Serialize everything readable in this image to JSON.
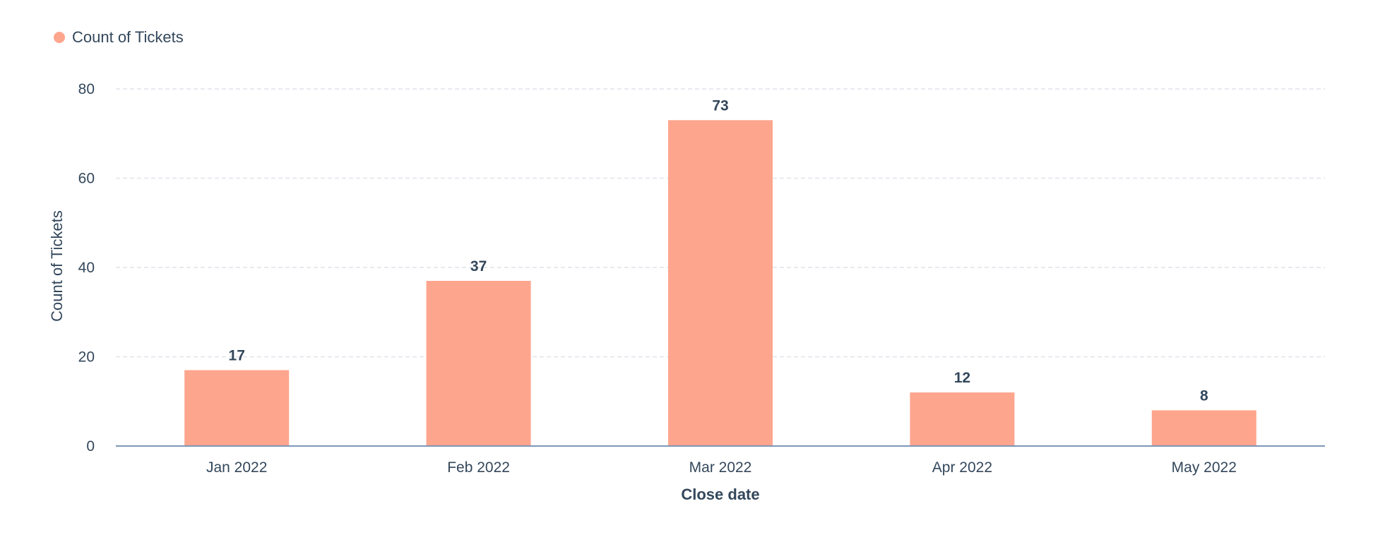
{
  "legend": {
    "label": "Count of Tickets",
    "color": "#fea58e"
  },
  "chart_data": {
    "type": "bar",
    "categories": [
      "Jan 2022",
      "Feb 2022",
      "Mar 2022",
      "Apr 2022",
      "May 2022"
    ],
    "series": [
      {
        "name": "Count of Tickets",
        "values": [
          17,
          37,
          73,
          12,
          8
        ],
        "color": "#fea58e"
      }
    ],
    "data_labels": [
      "17",
      "37",
      "73",
      "12",
      "8"
    ],
    "xlabel": "Close date",
    "ylabel": "Count of Tickets",
    "ylim": [
      0,
      80
    ],
    "yticks": [
      0,
      20,
      40,
      60,
      80
    ],
    "ytick_labels": [
      "0",
      "20",
      "40",
      "60",
      "80"
    ],
    "grid": true,
    "legend_position": "top-left",
    "colors": {
      "bar": "#fea58e",
      "text": "#33475b",
      "grid": "#dfe3eb",
      "axis": "#7c98b6"
    }
  }
}
